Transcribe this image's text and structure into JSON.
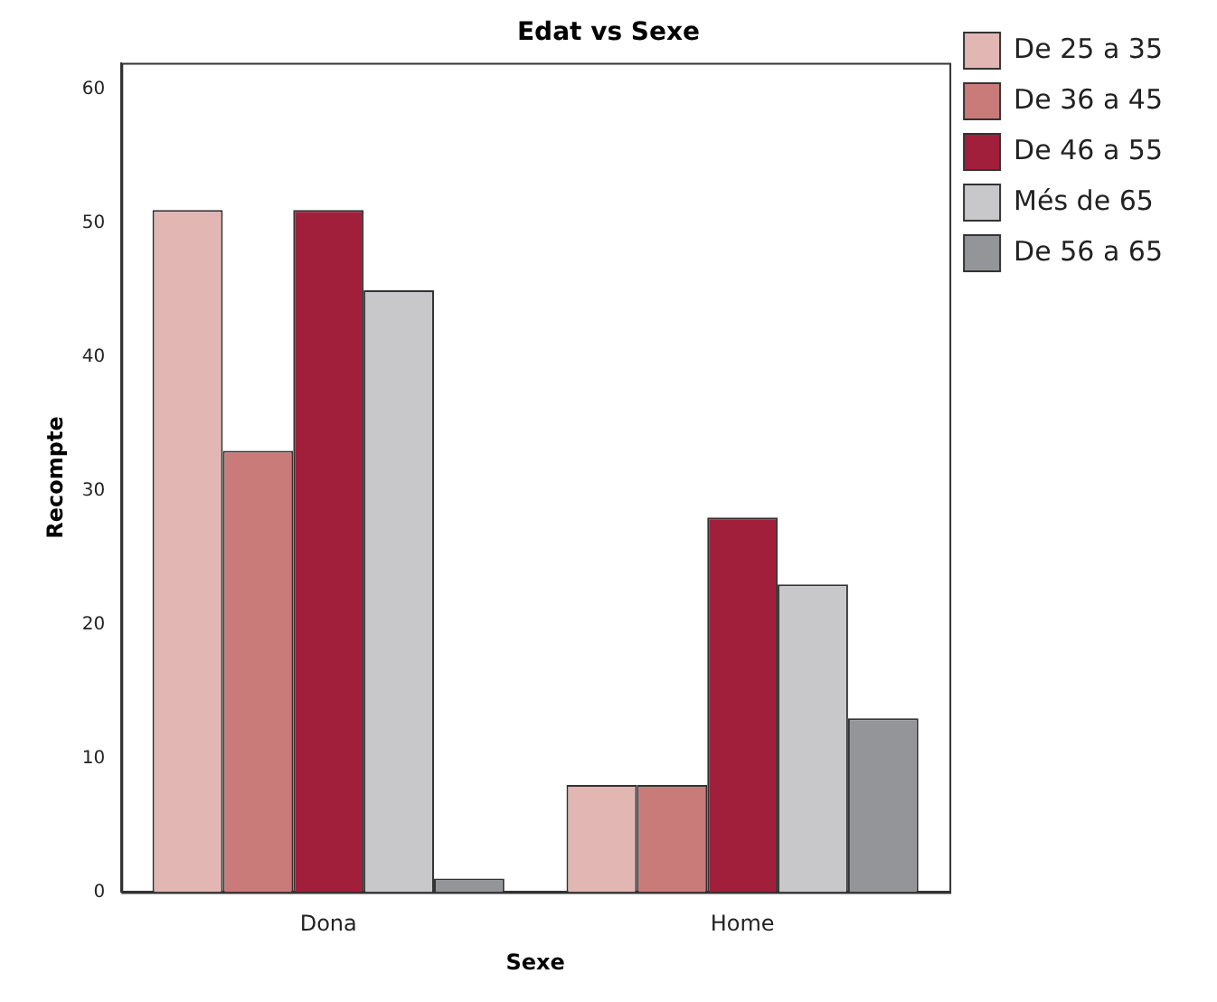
{
  "chart_data": {
    "type": "bar",
    "title": "Edat vs Sexe",
    "xlabel": "Sexe",
    "ylabel": "Recompte",
    "categories": [
      "Dona",
      "Home"
    ],
    "series": [
      {
        "name": "De 25 a 35",
        "color": "#e2b6b2",
        "values": [
          51,
          8
        ]
      },
      {
        "name": "De 36 a 45",
        "color": "#c97b7a",
        "values": [
          33,
          8
        ]
      },
      {
        "name": "De 46 a 55",
        "color": "#a11f3b",
        "values": [
          51,
          28
        ]
      },
      {
        "name": "Més de 65",
        "color": "#c8c8ca",
        "values": [
          45,
          23
        ]
      },
      {
        "name": "De 56 a 65",
        "color": "#939598",
        "values": [
          1,
          13
        ]
      }
    ],
    "ylim": [
      0,
      62
    ],
    "yticks": [
      0,
      10,
      20,
      30,
      40,
      50,
      60
    ],
    "grid": false,
    "legend": "right"
  }
}
